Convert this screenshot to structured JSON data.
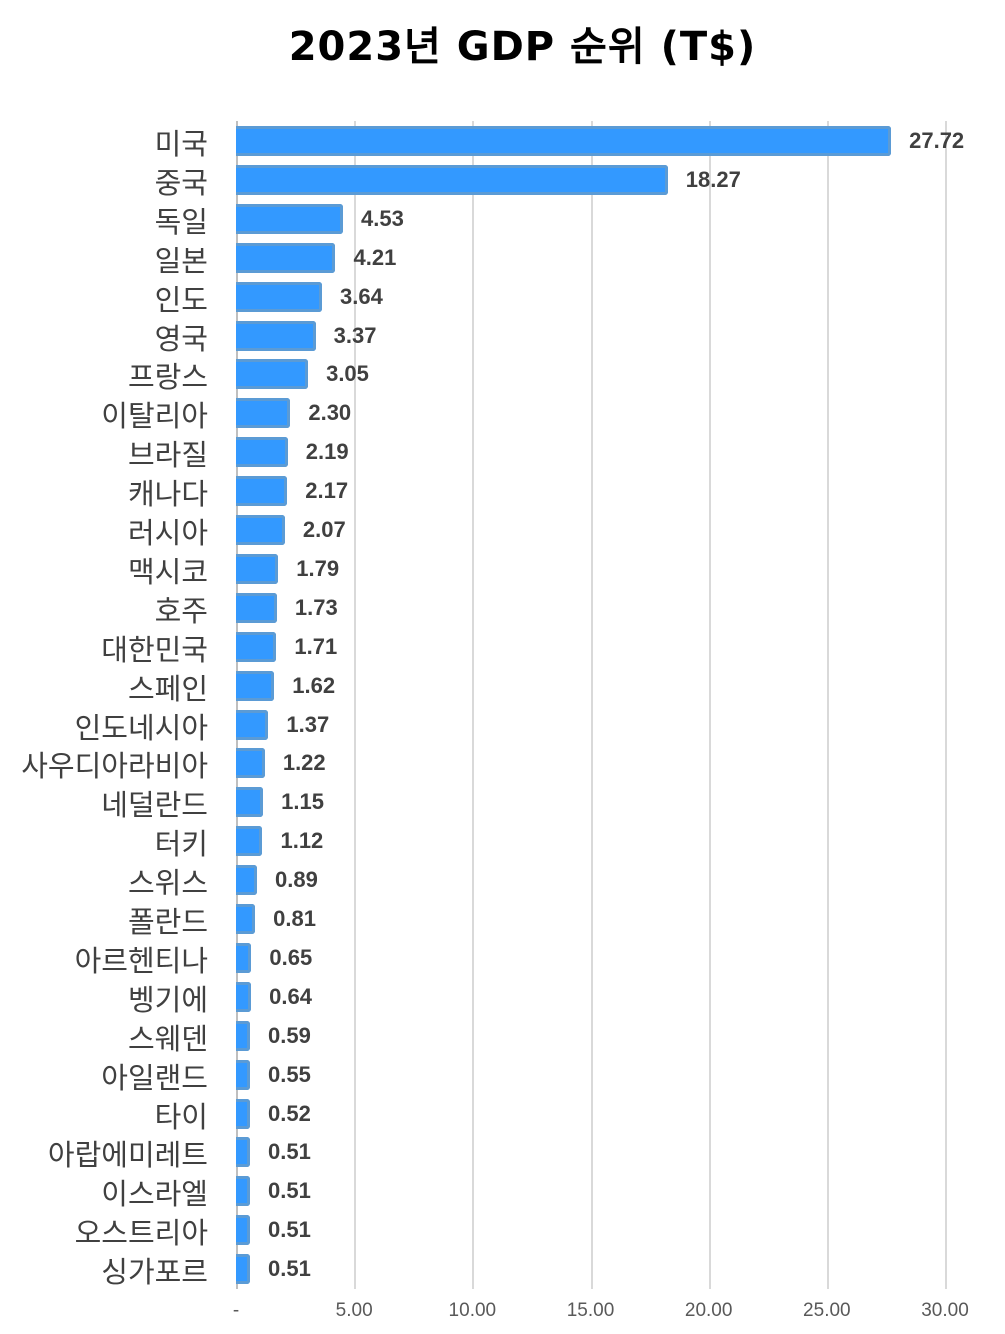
{
  "chart_data": {
    "type": "bar",
    "orientation": "horizontal",
    "title": "2023년 GDP 순위 (T$)",
    "xlabel": "",
    "ylabel": "",
    "xlim": [
      0,
      30
    ],
    "grid": true,
    "legend": null,
    "tick_labels": [
      "-",
      "5.00",
      "10.00",
      "15.00",
      "20.00",
      "25.00",
      "30.00"
    ],
    "tick_values": [
      0,
      5,
      10,
      15,
      20,
      25,
      30
    ],
    "bar_color": "#3399ff",
    "bar_border_color": "#5b9bd5",
    "categories": [
      "미국",
      "중국",
      "독일",
      "일본",
      "인도",
      "영국",
      "프랑스",
      "이탈리아",
      "브라질",
      "캐나다",
      "러시아",
      "맥시코",
      "호주",
      "대한민국",
      "스페인",
      "인도네시아",
      "사우디아라비아",
      "네덜란드",
      "터키",
      "스위스",
      "폴란드",
      "아르헨티나",
      "벵기에",
      "스웨덴",
      "아일랜드",
      "타이",
      "아랍에미레트",
      "이스라엘",
      "오스트리아",
      "싱가포르"
    ],
    "values": [
      27.72,
      18.27,
      4.53,
      4.21,
      3.64,
      3.37,
      3.05,
      2.3,
      2.19,
      2.17,
      2.07,
      1.79,
      1.73,
      1.71,
      1.62,
      1.37,
      1.22,
      1.15,
      1.12,
      0.89,
      0.81,
      0.65,
      0.64,
      0.59,
      0.55,
      0.52,
      0.51,
      0.51,
      0.51,
      0.51
    ],
    "value_labels": [
      "27.72",
      "18.27",
      "4.53",
      "4.21",
      "3.64",
      "3.37",
      "3.05",
      "2.30",
      "2.19",
      "2.17",
      "2.07",
      "1.79",
      "1.73",
      "1.71",
      "1.62",
      "1.37",
      "1.22",
      "1.15",
      "1.12",
      "0.89",
      "0.81",
      "0.65",
      "0.64",
      "0.59",
      "0.55",
      "0.52",
      "0.51",
      "0.51",
      "0.51",
      "0.51"
    ]
  }
}
